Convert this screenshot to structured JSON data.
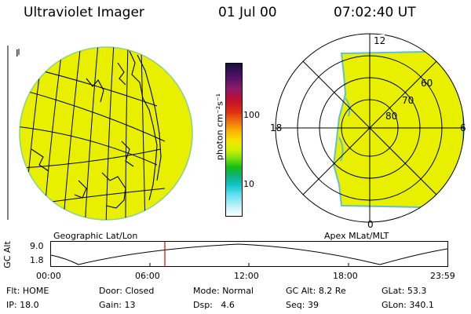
{
  "header": {
    "title": "Ultraviolet Imager",
    "date": "01 Jul 00",
    "time": "07:02:40 UT"
  },
  "left_panel": {
    "caption": "Geographic Lat/Lon",
    "corner_mark": "I",
    "disk_color": "#e8f000"
  },
  "color_bar": {
    "unit_label": "photon cm⁻²s⁻¹",
    "tick_labels": [
      "100",
      "10"
    ],
    "colors": [
      "#1a0f3a",
      "#4b1064",
      "#8a1a6a",
      "#c01030",
      "#e03010",
      "#f07010",
      "#f8b000",
      "#f8e000",
      "#d8f000",
      "#80e010",
      "#10c010",
      "#10b080",
      "#10c8c8",
      "#60e0f0",
      "#b8f0f8",
      "#ffffff"
    ]
  },
  "right_panel": {
    "caption": "Apex MLat/MLT",
    "mlt_labels": {
      "top": "12",
      "left": "18",
      "right": "6",
      "bottom": "0"
    },
    "mlat_labels": [
      "60",
      "70",
      "80"
    ]
  },
  "timeline": {
    "axis_label": "GC Alt",
    "y_ticks": [
      "9.0",
      "1.8"
    ],
    "x_ticks": [
      "00:00",
      "06:00",
      "12:00",
      "18:00",
      "23:59"
    ],
    "marker_color": "#e00000"
  },
  "footer": {
    "row1": [
      {
        "label": "Flt:",
        "value": "HOME"
      },
      {
        "label": "Door:",
        "value": "Closed"
      },
      {
        "label": "Mode:",
        "value": "Normal"
      },
      {
        "label": "GC Alt:",
        "value": "8.2 Re"
      },
      {
        "label": "GLat:",
        "value": "53.3"
      }
    ],
    "row2": [
      {
        "label": "IP:",
        "value": "18.0"
      },
      {
        "label": "Gain:",
        "value": "13"
      },
      {
        "label": "Dsp:",
        "value": "4.6"
      },
      {
        "label": "Seq:",
        "value": "39"
      },
      {
        "label": "GLon:",
        "value": "340.1"
      }
    ]
  }
}
